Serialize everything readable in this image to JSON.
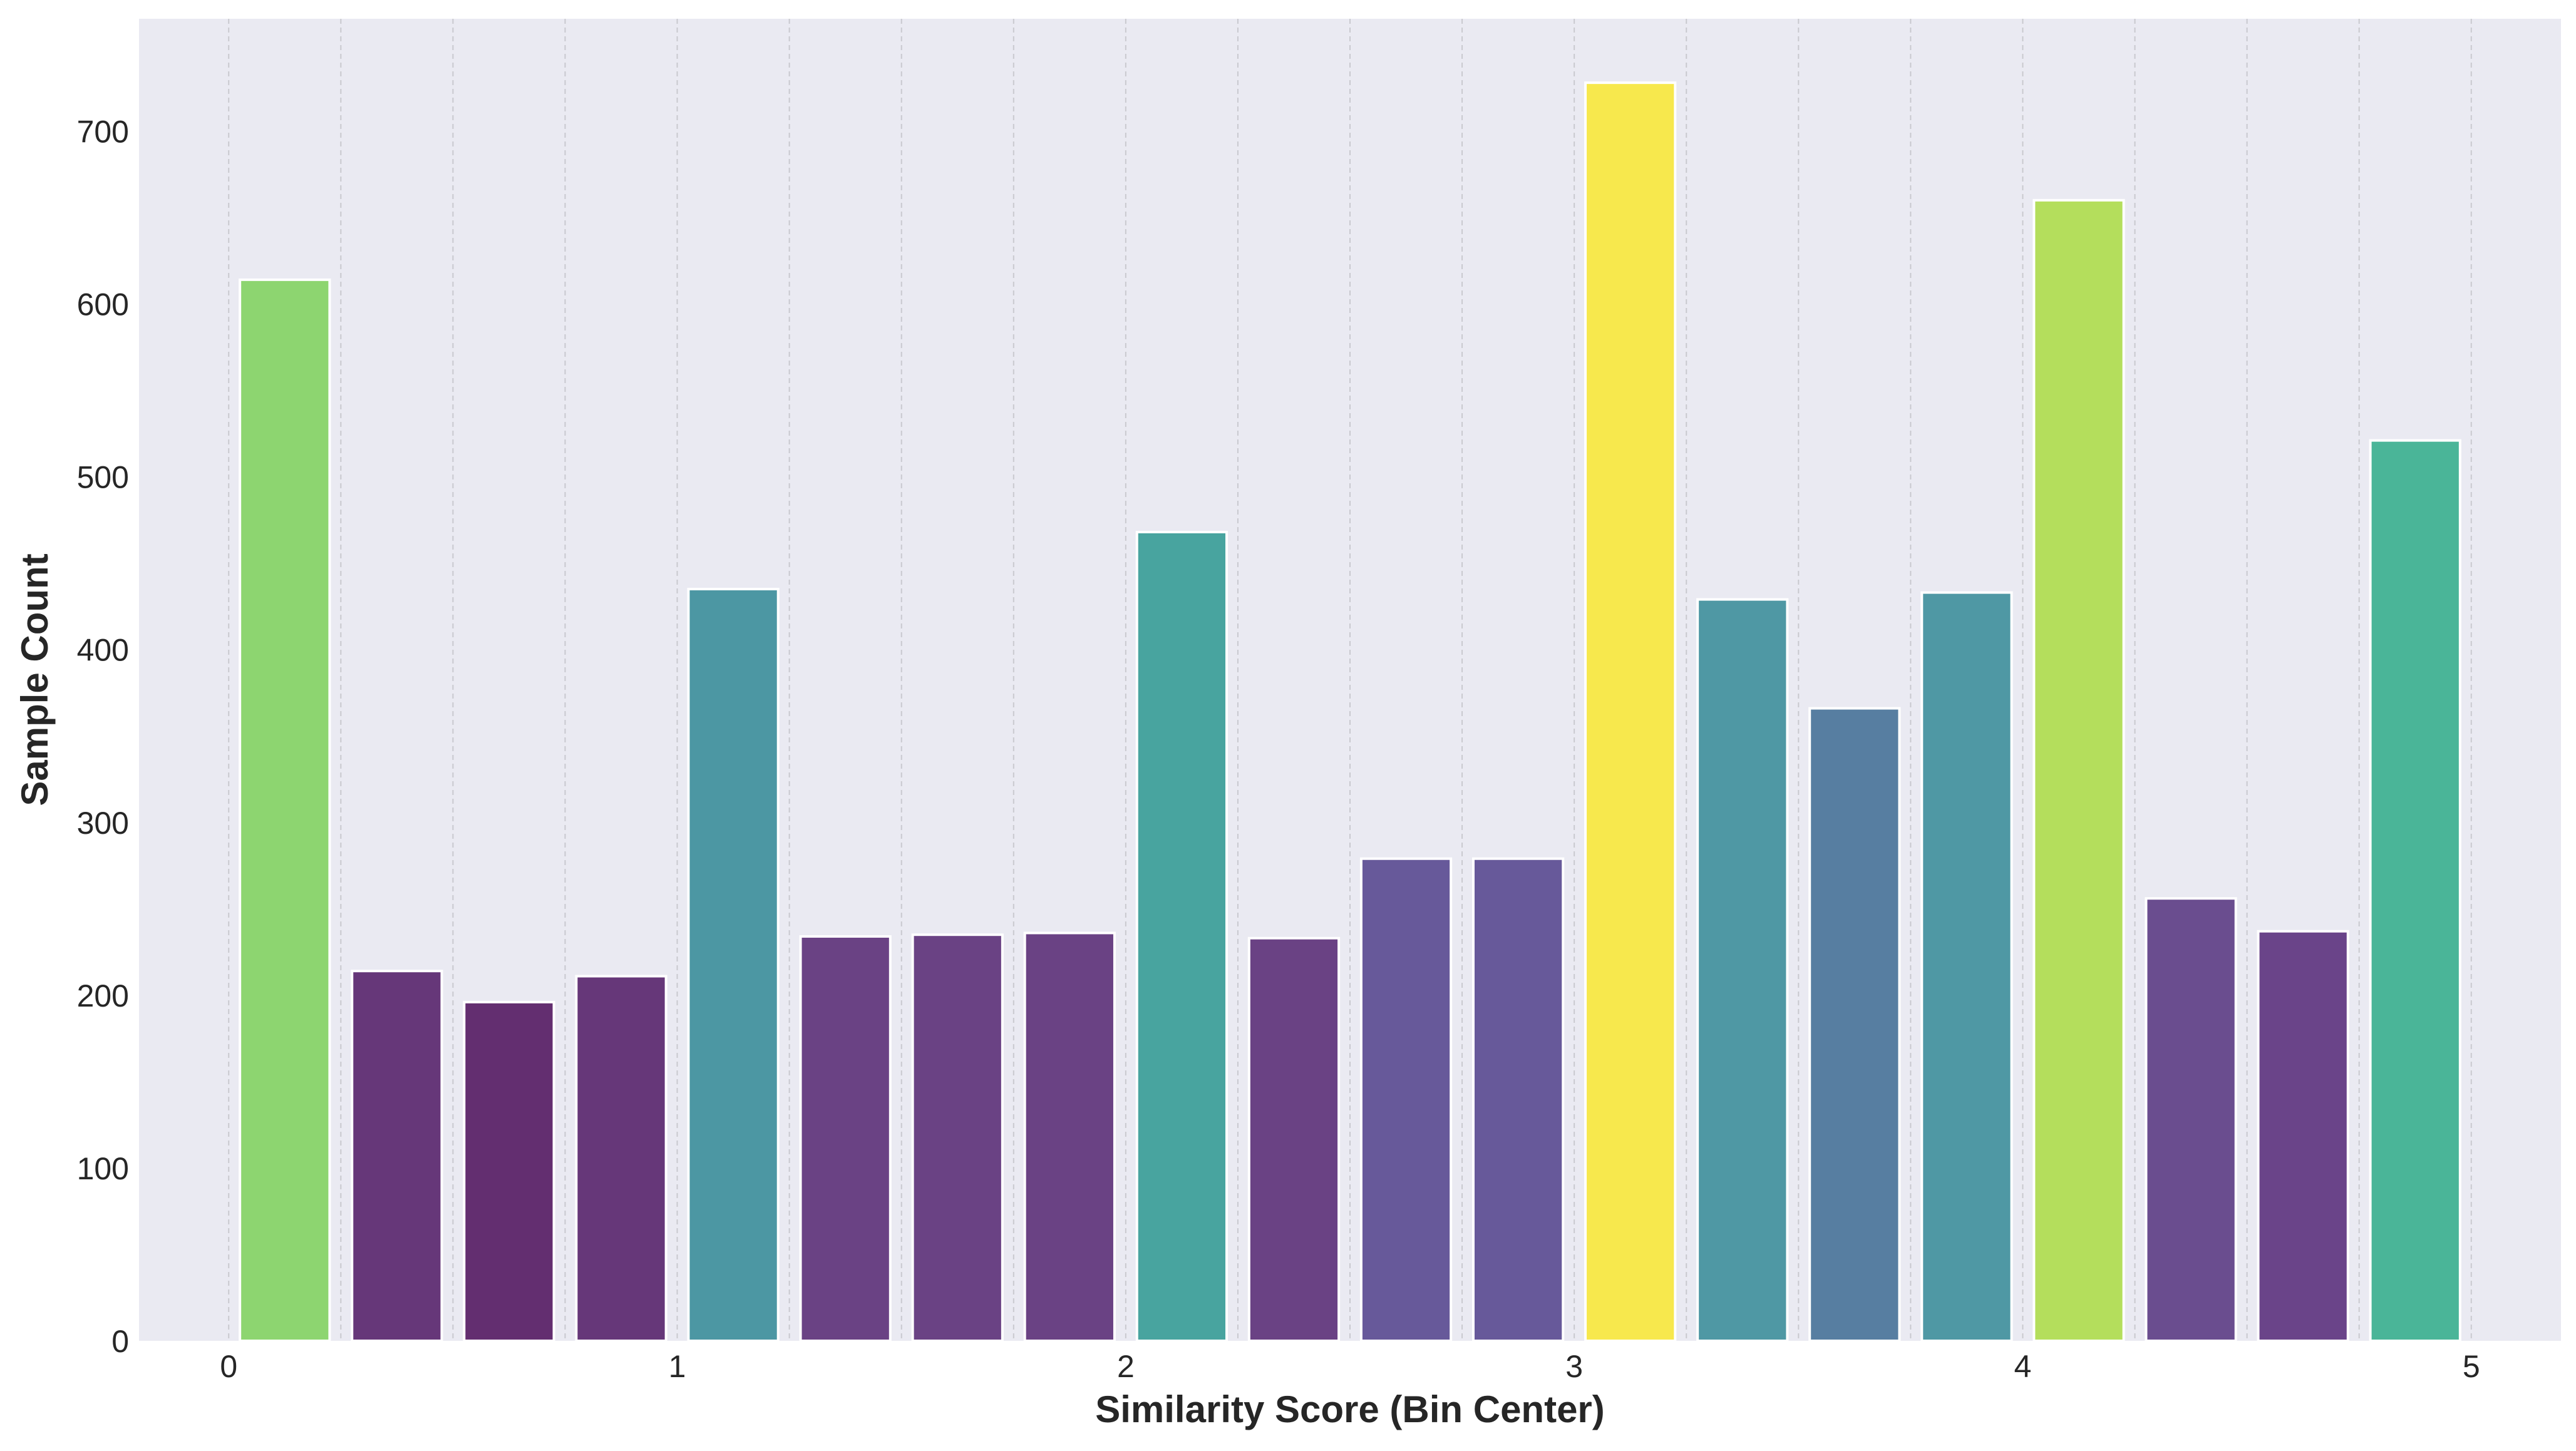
{
  "chart_data": {
    "type": "bar",
    "title": "",
    "xlabel": "Similarity Score (Bin Center)",
    "ylabel": "Sample Count",
    "xlim": [
      -0.2,
      5.2
    ],
    "ylim": [
      0,
      765
    ],
    "x_ticks": [
      0,
      1,
      2,
      3,
      4,
      5
    ],
    "x_tick_labels": [
      "0",
      "1",
      "2",
      "3",
      "4",
      "5"
    ],
    "y_ticks": [
      0,
      100,
      200,
      300,
      400,
      500,
      600,
      700
    ],
    "y_tick_labels": [
      "0",
      "100",
      "200",
      "300",
      "400",
      "500",
      "600",
      "700"
    ],
    "bin_edges": [
      0,
      0.25,
      0.5,
      0.75,
      1.0,
      1.25,
      1.5,
      1.75,
      2.0,
      2.25,
      2.5,
      2.75,
      3.0,
      3.25,
      3.5,
      3.75,
      4.0,
      4.25,
      4.5,
      4.75,
      5.0
    ],
    "bin_centers": [
      0.125,
      0.375,
      0.625,
      0.875,
      1.125,
      1.375,
      1.625,
      1.875,
      2.125,
      2.375,
      2.625,
      2.875,
      3.125,
      3.375,
      3.625,
      3.875,
      4.125,
      4.375,
      4.625,
      4.875
    ],
    "bar_width": 0.2,
    "values": [
      614,
      214,
      196,
      211,
      435,
      234,
      235,
      236,
      468,
      233,
      279,
      279,
      728,
      429,
      366,
      433,
      660,
      256,
      237,
      521
    ],
    "colors": [
      "#8dd570",
      "#663779",
      "#632e70",
      "#663779",
      "#4c97a3",
      "#6a4284",
      "#6a4284",
      "#6a4284",
      "#48a49f",
      "#6a4284",
      "#67599a",
      "#67599a",
      "#f7e84d",
      "#4f98a4",
      "#577ea1",
      "#4f98a4",
      "#b4de5c",
      "#6a4d8f",
      "#6a4489",
      "#4ab598"
    ],
    "grid": {
      "x": true,
      "y": false
    },
    "colors_theme": {
      "background": "#eaeaf2",
      "grid": "#c9c9cf",
      "bar_edge": "#ffffff",
      "text": "#262626"
    }
  }
}
